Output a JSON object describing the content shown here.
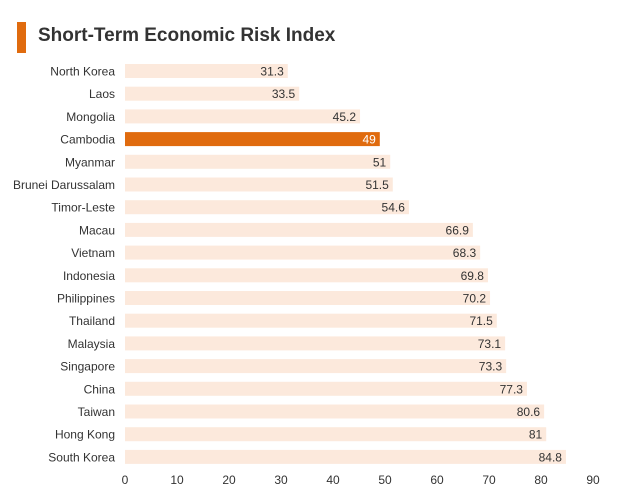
{
  "title": "Short-Term Economic Risk Index",
  "colors": {
    "accent": "#E06B0E",
    "bar": "#FCE9DC",
    "highlight_bar": "#E06B0E",
    "text": "#333333"
  },
  "chart_data": {
    "type": "bar",
    "orientation": "horizontal",
    "title": "Short-Term Economic Risk Index",
    "categories": [
      "North Korea",
      "Laos",
      "Mongolia",
      "Cambodia",
      "Myanmar",
      "Brunei Darussalam",
      "Timor-Leste",
      "Macau",
      "Vietnam",
      "Indonesia",
      "Philippines",
      "Thailand",
      "Malaysia",
      "Singapore",
      "China",
      "Taiwan",
      "Hong Kong",
      "South Korea"
    ],
    "values": [
      31.3,
      33.5,
      45.2,
      49,
      51,
      51.5,
      54.6,
      66.9,
      68.3,
      69.8,
      70.2,
      71.5,
      73.1,
      73.3,
      77.3,
      80.6,
      81,
      84.8
    ],
    "value_labels": [
      "31.3",
      "33.5",
      "45.2",
      "49",
      "51",
      "51.5",
      "54.6",
      "66.9",
      "68.3",
      "69.8",
      "70.2",
      "71.5",
      "73.1",
      "73.3",
      "77.3",
      "80.6",
      "81",
      "84.8"
    ],
    "highlight": "Cambodia",
    "xlim": [
      0,
      90
    ],
    "xticks": [
      "0",
      "10",
      "20",
      "30",
      "40",
      "50",
      "60",
      "70",
      "80",
      "90"
    ],
    "xlabel": "",
    "ylabel": "",
    "grid": false,
    "legend": "none"
  }
}
